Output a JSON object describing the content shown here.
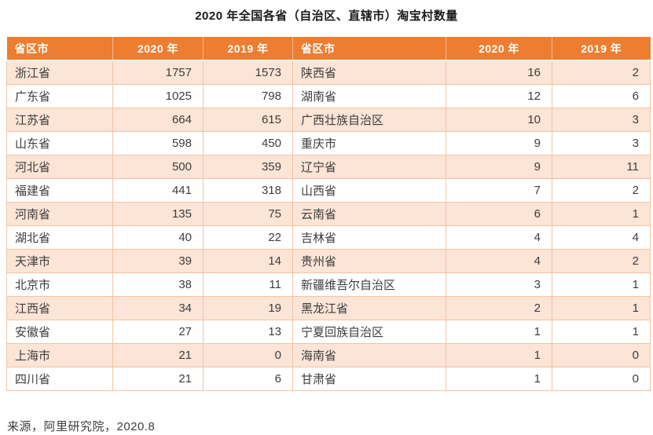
{
  "title": "2020 年全国各省（自治区、直辖市）淘宝村数量",
  "source_note": "来源，阿里研究院，2020.8",
  "colors": {
    "header_bg": "#ED7D31",
    "header_text": "#FFFFFF",
    "row_stripe": "#FCE4D6",
    "row_white": "#FFFFFF",
    "grid_border": "#F2C5A3",
    "title_text": "#1A1A1A",
    "cell_text": "#3D3D3D"
  },
  "table": {
    "headers": [
      "省区市",
      "2020 年",
      "2019 年",
      "省区市",
      "2020 年",
      "2019 年"
    ]
  },
  "chart_data": {
    "type": "table",
    "title": "2020 年全国各省（自治区、直辖市）淘宝村数量",
    "columns": [
      "省区市",
      "2020 年",
      "2019 年"
    ],
    "layout": "two side-by-side column groups of 14 rows each; rows 0-13 in left group, rows 14-27 in right group; zebra striping starting with peach",
    "rows": [
      [
        "浙江省",
        1757,
        1573
      ],
      [
        "广东省",
        1025,
        798
      ],
      [
        "江苏省",
        664,
        615
      ],
      [
        "山东省",
        598,
        450
      ],
      [
        "河北省",
        500,
        359
      ],
      [
        "福建省",
        441,
        318
      ],
      [
        "河南省",
        135,
        75
      ],
      [
        "湖北省",
        40,
        22
      ],
      [
        "天津市",
        39,
        14
      ],
      [
        "北京市",
        38,
        11
      ],
      [
        "江西省",
        34,
        19
      ],
      [
        "安徽省",
        27,
        13
      ],
      [
        "上海市",
        21,
        0
      ],
      [
        "四川省",
        21,
        6
      ],
      [
        "陕西省",
        16,
        2
      ],
      [
        "湖南省",
        12,
        6
      ],
      [
        "广西壮族自治区",
        10,
        3
      ],
      [
        "重庆市",
        9,
        3
      ],
      [
        "辽宁省",
        9,
        11
      ],
      [
        "山西省",
        7,
        2
      ],
      [
        "云南省",
        6,
        1
      ],
      [
        "吉林省",
        4,
        4
      ],
      [
        "贵州省",
        4,
        2
      ],
      [
        "新疆维吾尔自治区",
        3,
        1
      ],
      [
        "黑龙江省",
        2,
        1
      ],
      [
        "宁夏回族自治区",
        1,
        1
      ],
      [
        "海南省",
        1,
        0
      ],
      [
        "甘肃省",
        1,
        0
      ]
    ],
    "source": "来源，阿里研究院，2020.8"
  }
}
